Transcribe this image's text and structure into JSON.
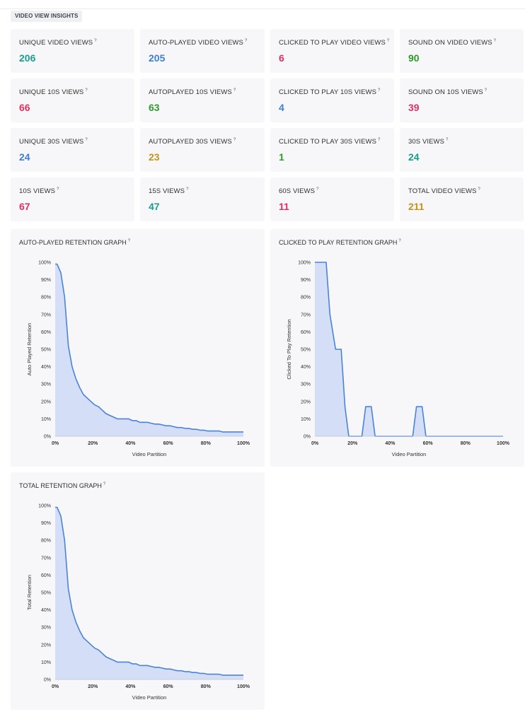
{
  "header": {
    "section_title": "VIDEO VIEW INSIGHTS"
  },
  "colors": {
    "teal": "#1a9c8f",
    "blue": "#3f7fd1",
    "red": "#e0325f",
    "green": "#2e9b2a",
    "gold": "#c9921a",
    "line": "#4a84d6",
    "fill": "#d4def6"
  },
  "stats": [
    {
      "label": "UNIQUE VIDEO VIEWS",
      "value": "206",
      "color": "#1a9c8f"
    },
    {
      "label": "AUTO-PLAYED VIDEO VIEWS",
      "value": "205",
      "color": "#3f7fd1"
    },
    {
      "label": "CLICKED TO PLAY VIDEO VIEWS",
      "value": "6",
      "color": "#e0325f"
    },
    {
      "label": "SOUND ON VIDEO VIEWS",
      "value": "90",
      "color": "#2e9b2a"
    },
    {
      "label": "UNIQUE 10S VIEWS",
      "value": "66",
      "color": "#e0325f"
    },
    {
      "label": "AUTOPLAYED 10S VIEWS",
      "value": "63",
      "color": "#2e9b2a"
    },
    {
      "label": "CLICKED TO PLAY 10S VIEWS",
      "value": "4",
      "color": "#3f7fd1"
    },
    {
      "label": "SOUND ON 10S VIEWS",
      "value": "39",
      "color": "#e0325f"
    },
    {
      "label": "UNIQUE 30S VIEWS",
      "value": "24",
      "color": "#3f7fd1"
    },
    {
      "label": "AUTOPLAYED 30S VIEWS",
      "value": "23",
      "color": "#c9921a"
    },
    {
      "label": "CLICKED TO PLAY 30S VIEWS",
      "value": "1",
      "color": "#2e9b2a"
    },
    {
      "label": "30S VIEWS",
      "value": "24",
      "color": "#1a9c8f"
    },
    {
      "label": "10S VIEWS",
      "value": "67",
      "color": "#e0325f"
    },
    {
      "label": "15S VIEWS",
      "value": "47",
      "color": "#1a9c8f"
    },
    {
      "label": "60S VIEWS",
      "value": "11",
      "color": "#e0325f"
    },
    {
      "label": "TOTAL VIDEO VIEWS",
      "value": "211",
      "color": "#c9921a"
    }
  ],
  "help_glyph": "?",
  "chart_data": [
    {
      "type": "area",
      "title": "AUTO-PLAYED RETENTION GRAPH",
      "xlabel": "Video Partition",
      "ylabel": "Auto Played Retention",
      "xlim": [
        0,
        100
      ],
      "ylim": [
        0,
        100
      ],
      "x_ticks": [
        "0%",
        "20%",
        "40%",
        "60%",
        "80%",
        "100%"
      ],
      "y_ticks": [
        "0%",
        "10%",
        "20%",
        "30%",
        "40%",
        "50%",
        "60%",
        "70%",
        "80%",
        "90%",
        "100%"
      ],
      "x": [
        0,
        1,
        3,
        5,
        7,
        9,
        11,
        13,
        15,
        17,
        19,
        21,
        23,
        25,
        27,
        29,
        31,
        33,
        35,
        37,
        39,
        41,
        43,
        45,
        47,
        49,
        51,
        53,
        55,
        57,
        59,
        61,
        63,
        65,
        67,
        69,
        71,
        73,
        75,
        77,
        79,
        81,
        83,
        85,
        87,
        89,
        91,
        93,
        95,
        97,
        100
      ],
      "values": [
        99,
        99,
        94,
        80,
        52,
        40,
        33,
        28,
        24,
        22,
        20,
        18,
        17,
        15,
        13,
        12,
        11,
        10,
        10,
        10,
        10,
        9,
        9,
        8,
        8,
        8,
        7.5,
        7,
        7,
        6.5,
        6,
        6,
        5.5,
        5,
        5,
        4.5,
        4.5,
        4,
        4,
        3.5,
        3.5,
        3,
        3,
        3,
        3,
        2.5,
        2.5,
        2.5,
        2.5,
        2.5,
        2.5
      ]
    },
    {
      "type": "area",
      "title": "CLICKED TO PLAY RETENTION GRAPH",
      "xlabel": "Video Partition",
      "ylabel": "Clicked To Play Retention",
      "xlim": [
        0,
        100
      ],
      "ylim": [
        0,
        100
      ],
      "x_ticks": [
        "0%",
        "20%",
        "40%",
        "60%",
        "80%",
        "100%"
      ],
      "y_ticks": [
        "0%",
        "10%",
        "20%",
        "30%",
        "40%",
        "50%",
        "60%",
        "70%",
        "80%",
        "90%",
        "100%"
      ],
      "x": [
        0,
        2,
        6,
        8,
        11,
        14,
        16,
        18,
        25,
        27,
        30,
        32,
        52,
        54,
        57,
        59,
        100
      ],
      "values": [
        100,
        100,
        100,
        70,
        50,
        50,
        17,
        0,
        0,
        17,
        17,
        0,
        0,
        17,
        17,
        0,
        0
      ]
    },
    {
      "type": "area",
      "title": "TOTAL RETENTION GRAPH",
      "xlabel": "Video Partition",
      "ylabel": "Total Retention",
      "xlim": [
        0,
        100
      ],
      "ylim": [
        0,
        100
      ],
      "x_ticks": [
        "0%",
        "20%",
        "40%",
        "60%",
        "80%",
        "100%"
      ],
      "y_ticks": [
        "0%",
        "10%",
        "20%",
        "30%",
        "40%",
        "50%",
        "60%",
        "70%",
        "80%",
        "90%",
        "100%"
      ],
      "x": [
        0,
        1,
        3,
        5,
        7,
        9,
        11,
        13,
        15,
        17,
        19,
        21,
        23,
        25,
        27,
        29,
        31,
        33,
        35,
        37,
        39,
        41,
        43,
        45,
        47,
        49,
        51,
        53,
        55,
        57,
        59,
        61,
        63,
        65,
        67,
        69,
        71,
        73,
        75,
        77,
        79,
        81,
        83,
        85,
        87,
        89,
        91,
        93,
        95,
        97,
        100
      ],
      "values": [
        99,
        99,
        94,
        80,
        52,
        40,
        33,
        28,
        24,
        22,
        20,
        18,
        17,
        15,
        13,
        12,
        11,
        10,
        10,
        10,
        10,
        9,
        9,
        8,
        8,
        8,
        7.5,
        7,
        7,
        6.5,
        6,
        6,
        5.5,
        5,
        5,
        4.5,
        4.5,
        4,
        4,
        3.5,
        3.5,
        3,
        3,
        3,
        3,
        2.5,
        2.5,
        2.5,
        2.5,
        2.5,
        2.5
      ]
    }
  ]
}
